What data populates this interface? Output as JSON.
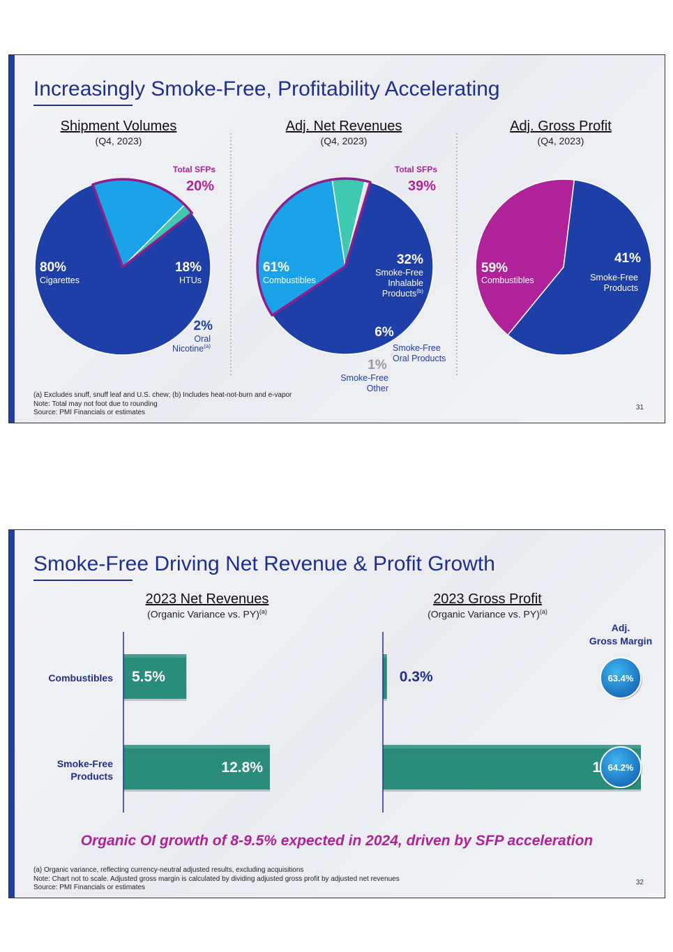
{
  "slide1": {
    "title": "Increasingly Smoke-Free, Profitability Accelerating",
    "page_number": "31",
    "footnotes": [
      "(a) Excludes snuff, snuff leaf and U.S. chew; (b) Includes heat-not-burn and e-vapor",
      "Note: Total may not foot due to rounding",
      "Source: PMI Financials or estimates"
    ]
  },
  "slide2": {
    "title": "Smoke-Free Driving Net Revenue & Profit Growth",
    "page_number": "32",
    "callout": "Organic OI growth of 8-9.5% expected in 2024, driven by SFP acceleration",
    "margin_header_line1": "Adj.",
    "margin_header_line2": "Gross Margin",
    "margins": [
      "63.4%",
      "64.2%"
    ],
    "footnotes": [
      "(a) Organic variance, reflecting currency-neutral adjusted results, excluding acquisitions",
      "Note: Chart not to scale. Adjusted gross margin is calculated by dividing adjusted gross profit by adjusted net revenues",
      "Source: PMI Financials or estimates"
    ]
  },
  "colors": {
    "navy": "#1f3fa8",
    "cyan": "#1aa3e8",
    "teal": "#3ec9b2",
    "magenta": "#b0229a",
    "bar_green": "#2a8c7a",
    "bubble": "#1b8fd6"
  },
  "chart_data": [
    {
      "type": "pie",
      "title": "Shipment Volumes",
      "subtitle": "(Q4, 2023)",
      "highlight_label": "Total SFPs",
      "highlight_value": "20%",
      "slices": [
        {
          "value": 80,
          "label_value": "80%",
          "label": "Cigarettes",
          "color": "#1f3fa8"
        },
        {
          "value": 18,
          "label_value": "18%",
          "label": "HTUs",
          "color": "#1aa3e8"
        },
        {
          "value": 2,
          "label_value": "2%",
          "label_line1": "Oral",
          "label_line2": "Nicotine",
          "label_sup": "(a)",
          "color": "#3ec9b2"
        }
      ]
    },
    {
      "type": "pie",
      "title": "Adj. Net Revenues",
      "subtitle": "(Q4, 2023)",
      "highlight_label": "Total SFPs",
      "highlight_value": "39%",
      "slices": [
        {
          "value": 61,
          "label_value": "61%",
          "label": "Combustibles",
          "color": "#1f3fa8"
        },
        {
          "value": 32,
          "label_value": "32%",
          "label_line1": "Smoke-Free",
          "label_line2": "Inhalable",
          "label_line3": "Products",
          "label_sup": "(b)",
          "color": "#1aa3e8"
        },
        {
          "value": 6,
          "label_value": "6%",
          "label_line1": "Smoke-Free",
          "label_line2": "Oral Products",
          "color": "#3ec9b2"
        },
        {
          "value": 1,
          "label_value": "1%",
          "label_line1": "Smoke-Free",
          "label_line2": "Other",
          "color": "#e6e6e6"
        }
      ]
    },
    {
      "type": "pie",
      "title": "Adj. Gross Profit",
      "subtitle": "(Q4, 2023)",
      "slices": [
        {
          "value": 59,
          "label_value": "59%",
          "label": "Combustibles",
          "color": "#1f3fa8"
        },
        {
          "value": 41,
          "label_value": "41%",
          "label_line1": "Smoke-Free",
          "label_line2": "Products",
          "color": "#b0229a"
        }
      ]
    },
    {
      "type": "bar",
      "orientation": "horizontal",
      "title": "2023 Net Revenues",
      "subtitle": "(Organic Variance vs. PY)",
      "subtitle_sup": "(a)",
      "categories": [
        "Combustibles",
        "Smoke-Free Products"
      ],
      "category_lines": [
        [
          "Combustibles"
        ],
        [
          "Smoke-Free",
          "Products"
        ]
      ],
      "values": [
        5.5,
        12.8
      ],
      "value_labels": [
        "5.5%",
        "12.8%"
      ]
    },
    {
      "type": "bar",
      "orientation": "horizontal",
      "title": "2023 Gross Profit",
      "subtitle": "(Organic Variance vs. PY)",
      "subtitle_sup": "(a)",
      "categories": [
        "Combustibles",
        "Smoke-Free Products"
      ],
      "values": [
        0.3,
        19.2
      ],
      "value_labels": [
        "0.3%",
        "19.2%"
      ]
    }
  ]
}
